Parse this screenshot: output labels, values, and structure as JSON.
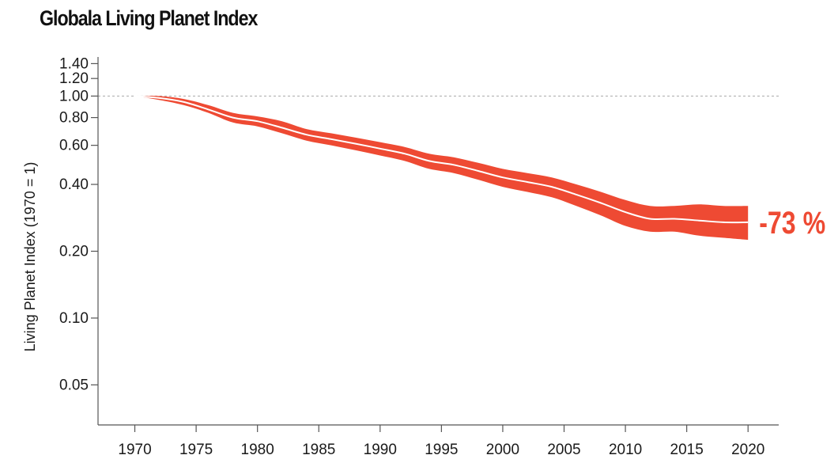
{
  "chart_data": {
    "type": "area",
    "title": "Globala Living Planet Index",
    "ylabel": "Living Planet Index (1970 = 1)",
    "xlabel": "",
    "yscale": "log",
    "xlim": [
      1967,
      2022.5
    ],
    "ylim": [
      0.033,
      1.5
    ],
    "reference_line": 1.0,
    "grid": false,
    "legend": "none",
    "y_ticks": [
      {
        "value": 1.4,
        "label": "1.40"
      },
      {
        "value": 1.2,
        "label": "1.20"
      },
      {
        "value": 1.0,
        "label": "1.00"
      },
      {
        "value": 0.8,
        "label": "0.80"
      },
      {
        "value": 0.6,
        "label": "0.60"
      },
      {
        "value": 0.4,
        "label": "0.40"
      },
      {
        "value": 0.2,
        "label": "0.20"
      },
      {
        "value": 0.1,
        "label": "0.10"
      },
      {
        "value": 0.05,
        "label": "0.05"
      }
    ],
    "x_ticks": [
      {
        "value": 1970,
        "label": "1970"
      },
      {
        "value": 1975,
        "label": "1975"
      },
      {
        "value": 1980,
        "label": "1980"
      },
      {
        "value": 1985,
        "label": "1985"
      },
      {
        "value": 1990,
        "label": "1990"
      },
      {
        "value": 1995,
        "label": "1995"
      },
      {
        "value": 2000,
        "label": "2000"
      },
      {
        "value": 2005,
        "label": "2005"
      },
      {
        "value": 2010,
        "label": "2010"
      },
      {
        "value": 2015,
        "label": "2015"
      },
      {
        "value": 2020,
        "label": "2020"
      }
    ],
    "series": [
      {
        "x": [
          1970,
          1972,
          1974,
          1976,
          1978,
          1980,
          1982,
          1984,
          1986,
          1988,
          1990,
          1992,
          1994,
          1996,
          1998,
          2000,
          2002,
          2004,
          2006,
          2008,
          2010,
          2012,
          2014,
          2016,
          2018,
          2020
        ],
        "index": [
          1.0,
          0.98,
          0.94,
          0.87,
          0.8,
          0.77,
          0.72,
          0.67,
          0.64,
          0.61,
          0.58,
          0.55,
          0.51,
          0.49,
          0.46,
          0.43,
          0.41,
          0.39,
          0.36,
          0.33,
          0.3,
          0.28,
          0.28,
          0.275,
          0.27,
          0.27
        ],
        "lower": [
          1.0,
          0.96,
          0.91,
          0.84,
          0.76,
          0.73,
          0.68,
          0.63,
          0.6,
          0.57,
          0.54,
          0.51,
          0.47,
          0.45,
          0.42,
          0.39,
          0.37,
          0.35,
          0.32,
          0.29,
          0.26,
          0.245,
          0.245,
          0.235,
          0.23,
          0.225
        ],
        "upper": [
          1.0,
          1.0,
          0.97,
          0.91,
          0.84,
          0.81,
          0.77,
          0.71,
          0.68,
          0.65,
          0.62,
          0.59,
          0.55,
          0.53,
          0.5,
          0.47,
          0.45,
          0.43,
          0.4,
          0.37,
          0.34,
          0.32,
          0.32,
          0.325,
          0.32,
          0.32
        ]
      }
    ],
    "annotations": [
      {
        "text": "-73 %",
        "x": 2020,
        "y": 0.27
      }
    ],
    "colors": {
      "band": "#ee4a33",
      "line": "#ffffff",
      "axis": "#555555",
      "reference": "#aaaaaa",
      "annotation": "#ee4a33"
    }
  }
}
